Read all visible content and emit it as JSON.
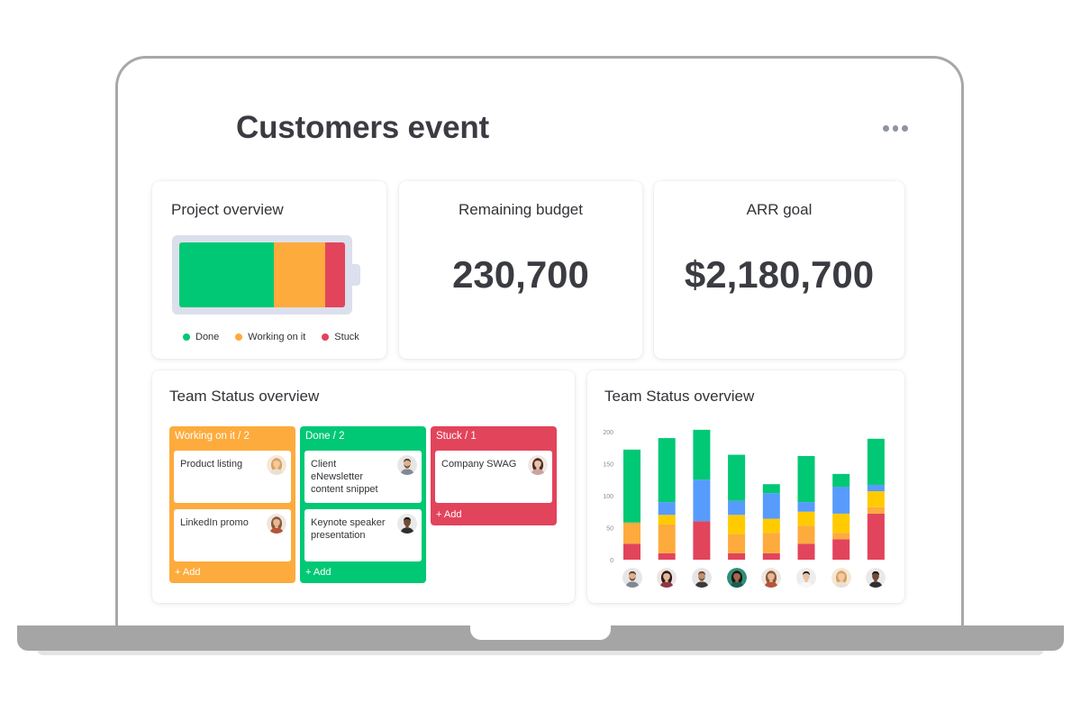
{
  "page": {
    "title": "Customers event"
  },
  "project_overview": {
    "title": "Project overview",
    "segments": [
      {
        "key": "done",
        "fraction": 0.57,
        "color": "#00c875"
      },
      {
        "key": "working",
        "fraction": 0.31,
        "color": "#fdab3d"
      },
      {
        "key": "stuck",
        "fraction": 0.12,
        "color": "#e2445c"
      }
    ],
    "legend": [
      {
        "label": "Done",
        "color": "#00c875"
      },
      {
        "label": "Working on it",
        "color": "#fdab3d"
      },
      {
        "label": "Stuck",
        "color": "#e2445c"
      }
    ]
  },
  "remaining_budget": {
    "title": "Remaining budget",
    "value": "230,700"
  },
  "arr_goal": {
    "title": "ARR goal",
    "value": "$2,180,700"
  },
  "team_status_board": {
    "title": "Team Status overview",
    "columns": [
      {
        "header": "Working on it / 2",
        "color": "#fdab3d",
        "add_label": "+ Add",
        "cards": [
          {
            "text": "Product listing",
            "avatar": "woman-blonde"
          },
          {
            "text": "LinkedIn promo",
            "avatar": "woman-curly"
          }
        ]
      },
      {
        "header": "Done / 2",
        "color": "#00c875",
        "add_label": "+ Add",
        "cards": [
          {
            "text": "Client eNewsletter content snippet",
            "avatar": "man-beard"
          },
          {
            "text": "Keynote speaker presentation",
            "avatar": "man-dark"
          }
        ]
      },
      {
        "header": "Stuck / 1",
        "color": "#e2445c",
        "add_label": "+ Add",
        "cards": [
          {
            "text": "Company SWAG",
            "avatar": "woman-brunette"
          }
        ]
      }
    ]
  },
  "team_status_chart": {
    "title": "Team Status overview",
    "chart_data": {
      "type": "bar",
      "stacked": true,
      "categories": [
        "person-1",
        "person-2",
        "person-3",
        "person-4",
        "person-5",
        "person-6",
        "person-7",
        "person-8"
      ],
      "yticks": [
        0,
        50,
        100,
        150,
        200
      ],
      "ylim": [
        0,
        200
      ],
      "series": [
        {
          "color": "#e2445c",
          "values": [
            25,
            10,
            60,
            10,
            10,
            25,
            32,
            72
          ]
        },
        {
          "color": "#fdab3d",
          "values": [
            33,
            45,
            0,
            30,
            32,
            28,
            10,
            10
          ]
        },
        {
          "color": "#ffcb00",
          "values": [
            0,
            15,
            0,
            30,
            22,
            22,
            30,
            25
          ]
        },
        {
          "color": "#579bfc",
          "values": [
            0,
            20,
            65,
            22,
            40,
            15,
            42,
            10
          ]
        },
        {
          "color": "#00c875",
          "values": [
            114,
            100,
            78,
            72,
            14,
            72,
            20,
            72
          ]
        }
      ],
      "grid": false,
      "legend": "none"
    },
    "avatars": [
      "man-beard",
      "woman-dark",
      "man-bald",
      "woman-curly-dark",
      "woman-curly",
      "man-white-shirt",
      "woman-blonde",
      "man-dark"
    ]
  }
}
